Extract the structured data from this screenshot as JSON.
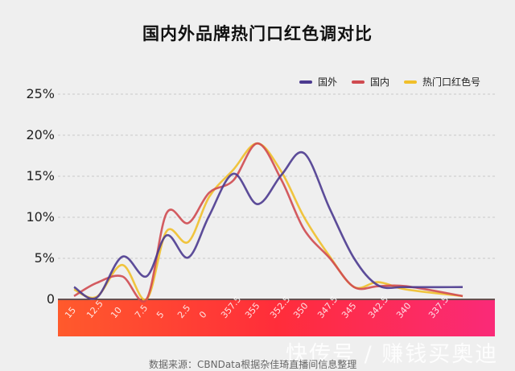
{
  "title": "国内外品牌热门口红色调对比",
  "legend": [
    {
      "label": "国外",
      "color": "#4b3a8f"
    },
    {
      "label": "国内",
      "color": "#cf4a50"
    },
    {
      "label": "热门口红色号",
      "color": "#f0bf2a"
    }
  ],
  "source": "数据来源：CBNData根据杂佳琦直播间信息整理",
  "watermark": "快传号 / 赚钱买奥迪",
  "chart_data": {
    "type": "line",
    "title": "国内外品牌热门口红色调对比",
    "xlabel": "",
    "ylabel": "",
    "ylim": [
      0,
      25
    ],
    "yticks": [
      "0",
      "5%",
      "10%",
      "15%",
      "20%",
      "25%"
    ],
    "grid": true,
    "legend_position": "top-right",
    "categories": [
      "15",
      "12.5",
      "10",
      "7.5",
      "5",
      "2.5",
      "0",
      "357.5",
      "355",
      "352.5",
      "350",
      "347.5",
      "345",
      "342.5",
      "340",
      "337.5"
    ],
    "series": [
      {
        "name": "国外",
        "color": "#4b3a8f",
        "values": [
          1.5,
          0.2,
          5.2,
          2.8,
          7.8,
          5.1,
          10.2,
          15.3,
          11.6,
          15.2,
          17.8,
          11.0,
          5.0,
          1.7,
          1.5,
          1.5
        ]
      },
      {
        "name": "国内",
        "color": "#cf4a50",
        "values": [
          0.4,
          2.0,
          2.8,
          0.0,
          10.5,
          9.3,
          13.0,
          14.5,
          19.0,
          14.5,
          8.5,
          5.0,
          1.5,
          1.6,
          1.6,
          0.4
        ]
      },
      {
        "name": "热门口红色号",
        "color": "#f0bf2a",
        "values": [
          1.2,
          0.3,
          4.2,
          0.0,
          8.3,
          7.0,
          12.5,
          15.8,
          19.0,
          15.5,
          10.0,
          5.2,
          1.5,
          2.1,
          1.2,
          0.4
        ]
      }
    ]
  }
}
